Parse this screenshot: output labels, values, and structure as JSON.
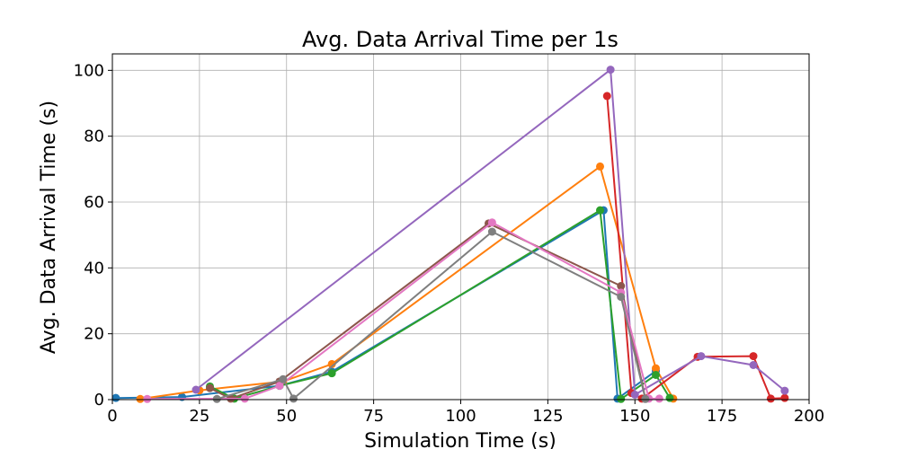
{
  "chart_data": {
    "type": "line",
    "title": "Avg. Data Arrival Time per 1s",
    "xlabel": "Simulation Time (s)",
    "ylabel": "Avg. Data Arrival Time (s)",
    "xlim": [
      0,
      200
    ],
    "ylim": [
      0,
      105
    ],
    "xticks": [
      0,
      25,
      50,
      75,
      100,
      125,
      150,
      175,
      200
    ],
    "yticks": [
      0,
      20,
      40,
      60,
      80,
      100
    ],
    "grid": true,
    "legend": "none",
    "series": [
      {
        "color": "#1f77b4",
        "points": [
          [
            1,
            0.5
          ],
          [
            20,
            0.8
          ],
          [
            48,
            4.2
          ],
          [
            63,
            8.5
          ],
          [
            141,
            57.5
          ],
          [
            145,
            0.3
          ],
          [
            156,
            8.7
          ]
        ]
      },
      {
        "color": "#ff7f0e",
        "points": [
          [
            8,
            0.2
          ],
          [
            25,
            2.8
          ],
          [
            49,
            5.5
          ],
          [
            63,
            10.8
          ],
          [
            140,
            70.8
          ],
          [
            156,
            9.5
          ],
          [
            161,
            0.3
          ]
        ]
      },
      {
        "color": "#2ca02c",
        "points": [
          [
            28,
            4.0
          ],
          [
            35,
            0.3
          ],
          [
            48,
            4.2
          ],
          [
            63,
            8.0
          ],
          [
            140,
            57.5
          ],
          [
            146,
            0.2
          ],
          [
            156,
            7.5
          ],
          [
            160,
            0.5
          ]
        ]
      },
      {
        "color": "#d62728",
        "points": [
          [
            142,
            92.2
          ],
          [
            149,
            2.0
          ],
          [
            152,
            0.3
          ],
          [
            168,
            13.0
          ],
          [
            184,
            13.2
          ],
          [
            189,
            0.3
          ],
          [
            193,
            0.5
          ]
        ]
      },
      {
        "color": "#9467bd",
        "points": [
          [
            24,
            3.0
          ],
          [
            143,
            100.2
          ],
          [
            150,
            1.5
          ],
          [
            169,
            13.2
          ],
          [
            184,
            10.5
          ],
          [
            193,
            2.7
          ]
        ]
      },
      {
        "color": "#8c564b",
        "points": [
          [
            28,
            3.5
          ],
          [
            34,
            0.3
          ],
          [
            48,
            5.5
          ],
          [
            108,
            53.5
          ],
          [
            146,
            34.5
          ],
          [
            153,
            0.3
          ]
        ]
      },
      {
        "color": "#e377c2",
        "points": [
          [
            10,
            0.2
          ],
          [
            38,
            0.3
          ],
          [
            48,
            4.2
          ],
          [
            109,
            53.8
          ],
          [
            146,
            32.5
          ],
          [
            154,
            0.3
          ],
          [
            157,
            0.3
          ]
        ]
      },
      {
        "color": "#7f7f7f",
        "points": [
          [
            30,
            0.2
          ],
          [
            49,
            6.2
          ],
          [
            52,
            0.3
          ],
          [
            109,
            51.0
          ],
          [
            146,
            31.2
          ],
          [
            153,
            0.2
          ]
        ]
      }
    ]
  }
}
